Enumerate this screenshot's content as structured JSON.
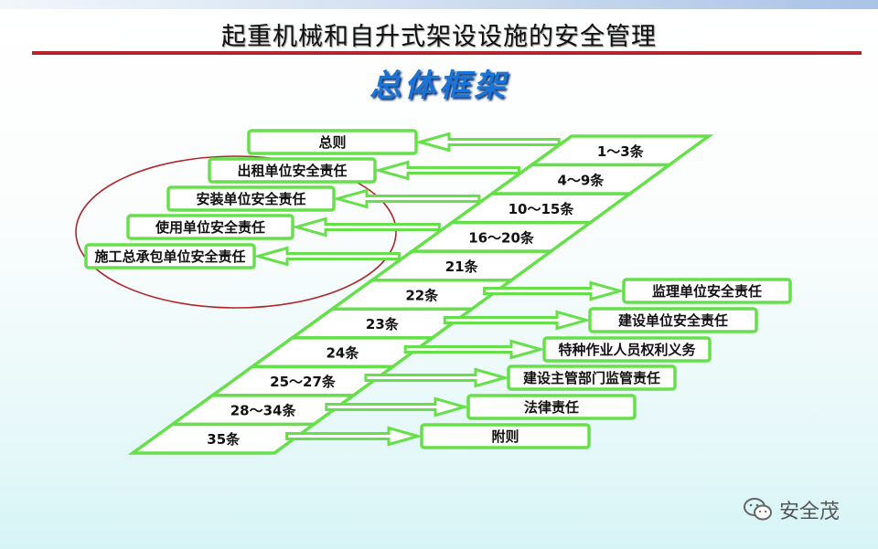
{
  "header": {
    "title": "起重机械和自升式架设设施的安全管理",
    "subtitle": "总体框架"
  },
  "colors": {
    "box_stroke": "#66e04a",
    "ellipse": "#b0262a",
    "title_line": "#b3262c",
    "subtitle": "#1a73d6"
  },
  "articles": [
    "1～3条",
    "4～9条",
    "10～15条",
    "16～20条",
    "21条",
    "22条",
    "23条",
    "24条",
    "25～27条",
    "28～34条",
    "35条"
  ],
  "left_boxes": [
    {
      "label": "总则",
      "row": 0
    },
    {
      "label": "出租单位安全责任",
      "row": 1
    },
    {
      "label": "安装单位安全责任",
      "row": 2
    },
    {
      "label": "使用单位安全责任",
      "row": 3
    },
    {
      "label": "施工总承包单位安全责任",
      "row": 4
    }
  ],
  "right_boxes": [
    {
      "label": "监理单位安全责任",
      "row": 5
    },
    {
      "label": "建设单位安全责任",
      "row": 6
    },
    {
      "label": "特种作业人员权利义务",
      "row": 7
    },
    {
      "label": "建设主管部门监管责任",
      "row": 8
    },
    {
      "label": "法律责任",
      "row": 9
    },
    {
      "label": "附则",
      "row": 10
    }
  ],
  "watermark": {
    "icon": "wechat-icon",
    "text": "安全茂"
  }
}
